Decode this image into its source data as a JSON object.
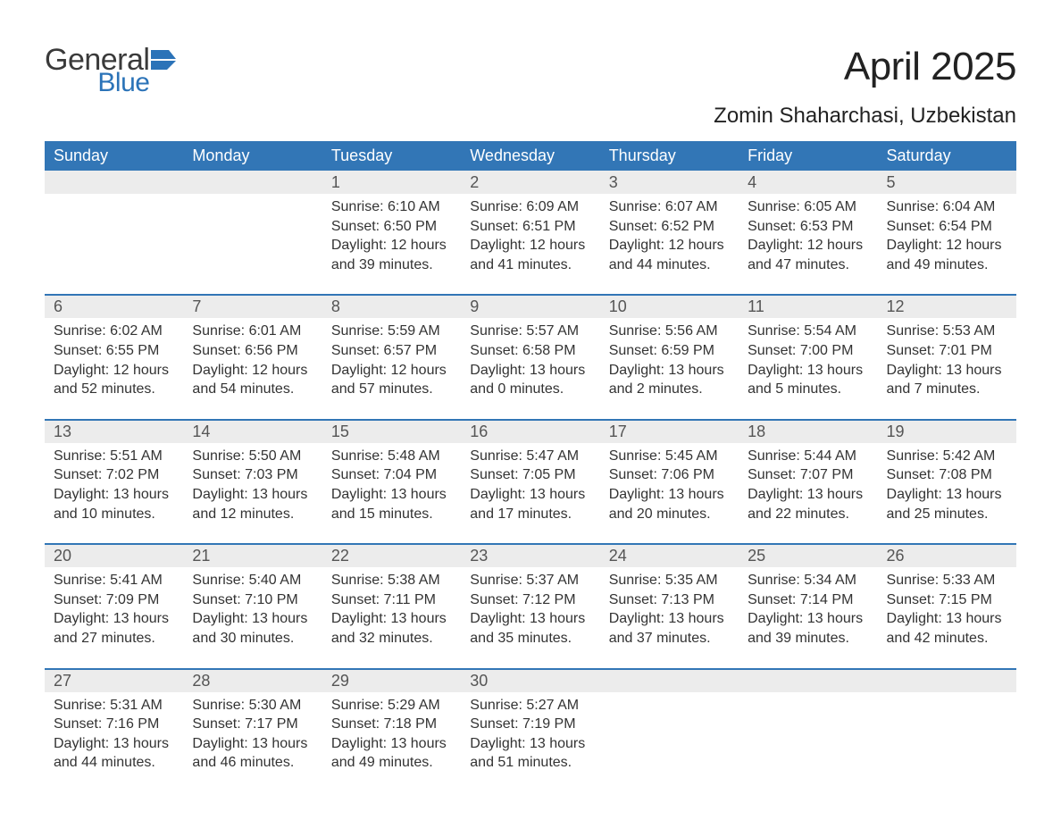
{
  "logo": {
    "general": "General",
    "blue": "Blue",
    "flag_color": "#2b73b8"
  },
  "title": "April 2025",
  "subtitle": "Zomin Shaharchasi, Uzbekistan",
  "colors": {
    "header_bg": "#3276b6",
    "header_text": "#ffffff",
    "daynum_bg": "#ececec",
    "row_border": "#3276b6",
    "text": "#333333",
    "daynum_text": "#555555",
    "page_bg": "#ffffff"
  },
  "fonts": {
    "title_pt": 44,
    "subtitle_pt": 24,
    "header_pt": 18,
    "daynum_pt": 18,
    "body_pt": 16
  },
  "weekdays": [
    "Sunday",
    "Monday",
    "Tuesday",
    "Wednesday",
    "Thursday",
    "Friday",
    "Saturday"
  ],
  "weeks": [
    [
      null,
      null,
      {
        "n": "1",
        "sr": "Sunrise: 6:10 AM",
        "ss": "Sunset: 6:50 PM",
        "d1": "Daylight: 12 hours",
        "d2": "and 39 minutes."
      },
      {
        "n": "2",
        "sr": "Sunrise: 6:09 AM",
        "ss": "Sunset: 6:51 PM",
        "d1": "Daylight: 12 hours",
        "d2": "and 41 minutes."
      },
      {
        "n": "3",
        "sr": "Sunrise: 6:07 AM",
        "ss": "Sunset: 6:52 PM",
        "d1": "Daylight: 12 hours",
        "d2": "and 44 minutes."
      },
      {
        "n": "4",
        "sr": "Sunrise: 6:05 AM",
        "ss": "Sunset: 6:53 PM",
        "d1": "Daylight: 12 hours",
        "d2": "and 47 minutes."
      },
      {
        "n": "5",
        "sr": "Sunrise: 6:04 AM",
        "ss": "Sunset: 6:54 PM",
        "d1": "Daylight: 12 hours",
        "d2": "and 49 minutes."
      }
    ],
    [
      {
        "n": "6",
        "sr": "Sunrise: 6:02 AM",
        "ss": "Sunset: 6:55 PM",
        "d1": "Daylight: 12 hours",
        "d2": "and 52 minutes."
      },
      {
        "n": "7",
        "sr": "Sunrise: 6:01 AM",
        "ss": "Sunset: 6:56 PM",
        "d1": "Daylight: 12 hours",
        "d2": "and 54 minutes."
      },
      {
        "n": "8",
        "sr": "Sunrise: 5:59 AM",
        "ss": "Sunset: 6:57 PM",
        "d1": "Daylight: 12 hours",
        "d2": "and 57 minutes."
      },
      {
        "n": "9",
        "sr": "Sunrise: 5:57 AM",
        "ss": "Sunset: 6:58 PM",
        "d1": "Daylight: 13 hours",
        "d2": "and 0 minutes."
      },
      {
        "n": "10",
        "sr": "Sunrise: 5:56 AM",
        "ss": "Sunset: 6:59 PM",
        "d1": "Daylight: 13 hours",
        "d2": "and 2 minutes."
      },
      {
        "n": "11",
        "sr": "Sunrise: 5:54 AM",
        "ss": "Sunset: 7:00 PM",
        "d1": "Daylight: 13 hours",
        "d2": "and 5 minutes."
      },
      {
        "n": "12",
        "sr": "Sunrise: 5:53 AM",
        "ss": "Sunset: 7:01 PM",
        "d1": "Daylight: 13 hours",
        "d2": "and 7 minutes."
      }
    ],
    [
      {
        "n": "13",
        "sr": "Sunrise: 5:51 AM",
        "ss": "Sunset: 7:02 PM",
        "d1": "Daylight: 13 hours",
        "d2": "and 10 minutes."
      },
      {
        "n": "14",
        "sr": "Sunrise: 5:50 AM",
        "ss": "Sunset: 7:03 PM",
        "d1": "Daylight: 13 hours",
        "d2": "and 12 minutes."
      },
      {
        "n": "15",
        "sr": "Sunrise: 5:48 AM",
        "ss": "Sunset: 7:04 PM",
        "d1": "Daylight: 13 hours",
        "d2": "and 15 minutes."
      },
      {
        "n": "16",
        "sr": "Sunrise: 5:47 AM",
        "ss": "Sunset: 7:05 PM",
        "d1": "Daylight: 13 hours",
        "d2": "and 17 minutes."
      },
      {
        "n": "17",
        "sr": "Sunrise: 5:45 AM",
        "ss": "Sunset: 7:06 PM",
        "d1": "Daylight: 13 hours",
        "d2": "and 20 minutes."
      },
      {
        "n": "18",
        "sr": "Sunrise: 5:44 AM",
        "ss": "Sunset: 7:07 PM",
        "d1": "Daylight: 13 hours",
        "d2": "and 22 minutes."
      },
      {
        "n": "19",
        "sr": "Sunrise: 5:42 AM",
        "ss": "Sunset: 7:08 PM",
        "d1": "Daylight: 13 hours",
        "d2": "and 25 minutes."
      }
    ],
    [
      {
        "n": "20",
        "sr": "Sunrise: 5:41 AM",
        "ss": "Sunset: 7:09 PM",
        "d1": "Daylight: 13 hours",
        "d2": "and 27 minutes."
      },
      {
        "n": "21",
        "sr": "Sunrise: 5:40 AM",
        "ss": "Sunset: 7:10 PM",
        "d1": "Daylight: 13 hours",
        "d2": "and 30 minutes."
      },
      {
        "n": "22",
        "sr": "Sunrise: 5:38 AM",
        "ss": "Sunset: 7:11 PM",
        "d1": "Daylight: 13 hours",
        "d2": "and 32 minutes."
      },
      {
        "n": "23",
        "sr": "Sunrise: 5:37 AM",
        "ss": "Sunset: 7:12 PM",
        "d1": "Daylight: 13 hours",
        "d2": "and 35 minutes."
      },
      {
        "n": "24",
        "sr": "Sunrise: 5:35 AM",
        "ss": "Sunset: 7:13 PM",
        "d1": "Daylight: 13 hours",
        "d2": "and 37 minutes."
      },
      {
        "n": "25",
        "sr": "Sunrise: 5:34 AM",
        "ss": "Sunset: 7:14 PM",
        "d1": "Daylight: 13 hours",
        "d2": "and 39 minutes."
      },
      {
        "n": "26",
        "sr": "Sunrise: 5:33 AM",
        "ss": "Sunset: 7:15 PM",
        "d1": "Daylight: 13 hours",
        "d2": "and 42 minutes."
      }
    ],
    [
      {
        "n": "27",
        "sr": "Sunrise: 5:31 AM",
        "ss": "Sunset: 7:16 PM",
        "d1": "Daylight: 13 hours",
        "d2": "and 44 minutes."
      },
      {
        "n": "28",
        "sr": "Sunrise: 5:30 AM",
        "ss": "Sunset: 7:17 PM",
        "d1": "Daylight: 13 hours",
        "d2": "and 46 minutes."
      },
      {
        "n": "29",
        "sr": "Sunrise: 5:29 AM",
        "ss": "Sunset: 7:18 PM",
        "d1": "Daylight: 13 hours",
        "d2": "and 49 minutes."
      },
      {
        "n": "30",
        "sr": "Sunrise: 5:27 AM",
        "ss": "Sunset: 7:19 PM",
        "d1": "Daylight: 13 hours",
        "d2": "and 51 minutes."
      },
      null,
      null,
      null
    ]
  ]
}
